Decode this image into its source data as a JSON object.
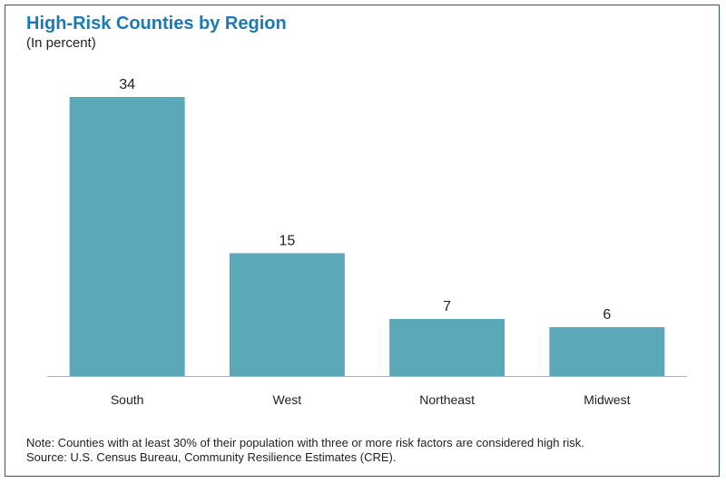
{
  "chart_data": {
    "type": "bar",
    "title": "High-Risk Counties by Region",
    "subtitle": "(In percent)",
    "categories": [
      "South",
      "West",
      "Northeast",
      "Midwest"
    ],
    "values": [
      34,
      15,
      7,
      6
    ],
    "data_labels": [
      "34",
      "15",
      "7",
      "6"
    ],
    "ylim": [
      0,
      34
    ],
    "grid": false,
    "legend": "none",
    "bar_color": "#5ba8b8"
  },
  "notes": {
    "note": "Note: Counties with at least 30% of their population with three or more risk factors are considered high risk.",
    "source": "Source: U.S. Census Bureau, Community Resilience Estimates (CRE)."
  },
  "colors": {
    "title": "#1a7ab5",
    "frame": "#1f5f7a",
    "bar": "#5ba8b8",
    "text": "#222222",
    "axis": "#b0b0b0"
  }
}
